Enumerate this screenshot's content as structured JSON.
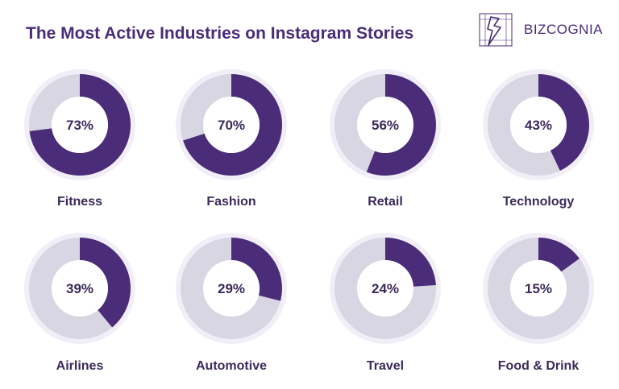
{
  "header": {
    "title": "The Most Active Industries on Instagram Stories",
    "brand_name": "BIZCOGNIA",
    "logo_icon": "bizcognia-logo-icon"
  },
  "colors": {
    "accent": "#4a2c78",
    "ring_background": "#d9d6e3",
    "ring_halo": "#f1eef8",
    "label": "#3b2a5a"
  },
  "chart_data": {
    "type": "pie",
    "title": "The Most Active Industries on Instagram Stories",
    "unit": "%",
    "categories": [
      "Fitness",
      "Fashion",
      "Retail",
      "Technology",
      "Airlines",
      "Automotive",
      "Travel",
      "Food & Drink"
    ],
    "values": [
      73,
      70,
      56,
      43,
      39,
      29,
      24,
      15
    ],
    "value_labels": [
      "73%",
      "70%",
      "56%",
      "43%",
      "39%",
      "29%",
      "24%",
      "15%"
    ],
    "legend": "none",
    "grid": false
  }
}
